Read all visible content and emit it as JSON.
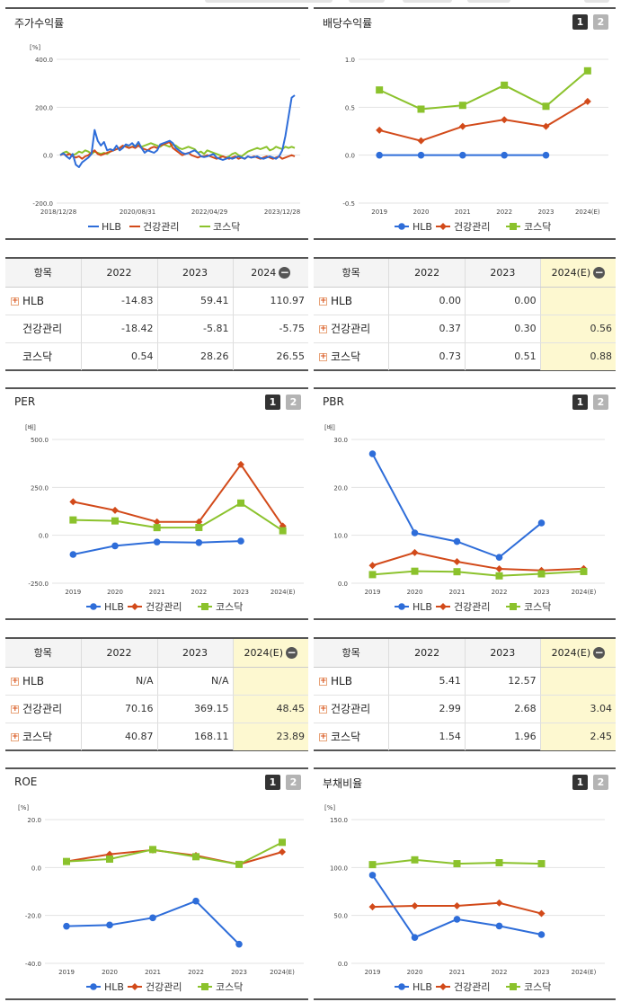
{
  "panels": [
    {
      "id": "p0",
      "title": "주가수익률",
      "buttons": null,
      "chart_data": {
        "type": "line",
        "unit": "[%]",
        "ylim": [
          -200,
          400
        ],
        "yticks": [
          "400.0",
          "200.0",
          "0.0",
          "-200.0"
        ],
        "xticks": [
          "2018/12/28",
          "2020/08/31",
          "2022/04/29",
          "2023/12/28"
        ],
        "series": [
          {
            "name": "HLB",
            "color": "#2e6dd9",
            "values": [
              0,
              8,
              -5,
              -15,
              5,
              -40,
              -50,
              -30,
              -20,
              -10,
              5,
              105,
              60,
              40,
              55,
              20,
              25,
              20,
              40,
              20,
              30,
              45,
              40,
              50,
              35,
              55,
              30,
              10,
              20,
              15,
              10,
              20,
              45,
              50,
              55,
              60,
              50,
              30,
              20,
              10,
              5,
              8,
              15,
              20,
              10,
              -5,
              -8,
              -5,
              0,
              5,
              -10,
              -15,
              -20,
              -15,
              -10,
              -15,
              -10,
              -5,
              -10,
              -15,
              -5,
              -10,
              -8,
              -5,
              -12,
              -15,
              -10,
              -5,
              -10,
              -15,
              -5,
              20,
              80,
              160,
              240,
              250
            ]
          },
          {
            "name": "건강관리",
            "color": "#d24a1a",
            "values": [
              0,
              5,
              0,
              5,
              -5,
              -10,
              -5,
              -15,
              -5,
              0,
              10,
              20,
              5,
              0,
              5,
              10,
              15,
              20,
              25,
              30,
              40,
              35,
              30,
              35,
              30,
              40,
              30,
              25,
              20,
              30,
              35,
              30,
              40,
              45,
              50,
              55,
              30,
              20,
              10,
              0,
              5,
              10,
              0,
              -5,
              -10,
              -5,
              -5,
              0,
              -5,
              -10,
              -15,
              -10,
              -5,
              -10,
              -15,
              -10,
              -5,
              -15,
              -10,
              -15,
              -5,
              -10,
              -5,
              -10,
              -15,
              -10,
              -5,
              -10,
              -15,
              -10,
              -5,
              -15,
              -10,
              -5,
              0,
              -5
            ]
          },
          {
            "name": "코스닥",
            "color": "#8bc22c",
            "values": [
              0,
              10,
              15,
              5,
              0,
              5,
              15,
              10,
              20,
              15,
              5,
              15,
              10,
              5,
              10,
              5,
              15,
              20,
              25,
              30,
              35,
              40,
              30,
              35,
              40,
              45,
              35,
              40,
              45,
              50,
              45,
              40,
              35,
              45,
              40,
              35,
              45,
              40,
              30,
              25,
              30,
              35,
              30,
              25,
              10,
              15,
              5,
              20,
              15,
              10,
              5,
              0,
              -5,
              -10,
              -5,
              5,
              10,
              0,
              -5,
              5,
              15,
              20,
              25,
              30,
              25,
              30,
              35,
              20,
              25,
              35,
              30,
              25,
              35,
              30,
              35,
              30
            ]
          }
        ]
      }
    },
    {
      "id": "p1",
      "title": "배당수익률",
      "buttons": [
        "1",
        "2"
      ],
      "chart_data": {
        "type": "line",
        "unit": "",
        "ylim": [
          -0.5,
          1.0
        ],
        "yticks": [
          "1.0",
          "0.5",
          "0.0",
          "-0.5"
        ],
        "categories": [
          "2019",
          "2020",
          "2021",
          "2022",
          "2023",
          "2024(E)"
        ],
        "series": [
          {
            "name": "HLB",
            "color": "#2e6dd9",
            "marker": "circle",
            "values": [
              0,
              0,
              0,
              0,
              0,
              null
            ]
          },
          {
            "name": "건강관리",
            "color": "#d24a1a",
            "marker": "diamond",
            "values": [
              0.26,
              0.15,
              0.3,
              0.37,
              0.3,
              0.56
            ]
          },
          {
            "name": "코스닥",
            "color": "#8bc22c",
            "marker": "square",
            "values": [
              0.68,
              0.48,
              0.52,
              0.73,
              0.51,
              0.88
            ]
          }
        ]
      }
    },
    {
      "id": "p2",
      "title": "PER",
      "buttons": [
        "1",
        "2"
      ],
      "chart_data": {
        "type": "line",
        "unit": "[배]",
        "ylim": [
          -250,
          500
        ],
        "yticks": [
          "500.0",
          "250.0",
          "0.0",
          "-250.0"
        ],
        "categories": [
          "2019",
          "2020",
          "2021",
          "2022",
          "2023",
          "2024(E)"
        ],
        "series": [
          {
            "name": "HLB",
            "color": "#2e6dd9",
            "marker": "circle",
            "values": [
              -100,
              -55,
              -35,
              -38,
              -30,
              null
            ]
          },
          {
            "name": "건강관리",
            "color": "#d24a1a",
            "marker": "diamond",
            "values": [
              175,
              130,
              70,
              70.16,
              369.15,
              48.45
            ]
          },
          {
            "name": "코스닥",
            "color": "#8bc22c",
            "marker": "square",
            "values": [
              80,
              75,
              40,
              40.87,
              168.11,
              23.89
            ]
          }
        ]
      }
    },
    {
      "id": "p3",
      "title": "PBR",
      "buttons": [
        "1",
        "2"
      ],
      "chart_data": {
        "type": "line",
        "unit": "[배]",
        "ylim": [
          0,
          30
        ],
        "yticks": [
          "30.0",
          "20.0",
          "10.0",
          "0.0"
        ],
        "categories": [
          "2019",
          "2020",
          "2021",
          "2022",
          "2023",
          "2024(E)"
        ],
        "series": [
          {
            "name": "HLB",
            "color": "#2e6dd9",
            "marker": "circle",
            "values": [
              27,
              10.5,
              8.7,
              5.41,
              12.57,
              null
            ]
          },
          {
            "name": "건강관리",
            "color": "#d24a1a",
            "marker": "diamond",
            "values": [
              3.7,
              6.4,
              4.5,
              2.99,
              2.68,
              3.04
            ]
          },
          {
            "name": "코스닥",
            "color": "#8bc22c",
            "marker": "square",
            "values": [
              1.8,
              2.5,
              2.4,
              1.54,
              1.96,
              2.45
            ]
          }
        ]
      }
    },
    {
      "id": "p4",
      "title": "ROE",
      "buttons": [
        "1",
        "2"
      ],
      "chart_data": {
        "type": "line",
        "unit": "[%]",
        "ylim": [
          -40,
          20
        ],
        "yticks": [
          "20.0",
          "0.0",
          "-20.0",
          "-40.0"
        ],
        "categories": [
          "2019",
          "2020",
          "2021",
          "2022",
          "2023",
          "2024(E)"
        ],
        "series": [
          {
            "name": "HLB",
            "color": "#2e6dd9",
            "marker": "circle",
            "values": [
              -24.5,
              -24,
              -21,
              -14,
              -32,
              null
            ]
          },
          {
            "name": "건강관리",
            "color": "#d24a1a",
            "marker": "diamond",
            "values": [
              2.5,
              5.5,
              7.3,
              5,
              1.3,
              6.5
            ]
          },
          {
            "name": "코스닥",
            "color": "#8bc22c",
            "marker": "square",
            "values": [
              2.5,
              3.5,
              7.5,
              4.5,
              1.3,
              10.5
            ]
          }
        ]
      }
    },
    {
      "id": "p5",
      "title": "부채비율",
      "buttons": [
        "1",
        "2"
      ],
      "chart_data": {
        "type": "line",
        "unit": "[%]",
        "ylim": [
          0,
          150
        ],
        "yticks": [
          "150.0",
          "100.0",
          "50.0",
          "0.0"
        ],
        "categories": [
          "2019",
          "2020",
          "2021",
          "2022",
          "2023",
          "2024(E)"
        ],
        "series": [
          {
            "name": "HLB",
            "color": "#2e6dd9",
            "marker": "circle",
            "values": [
              92,
              27,
              46,
              39,
              30,
              null
            ]
          },
          {
            "name": "건강관리",
            "color": "#d24a1a",
            "marker": "diamond",
            "values": [
              59,
              60,
              60,
              63,
              52,
              null
            ]
          },
          {
            "name": "코스닥",
            "color": "#8bc22c",
            "marker": "square",
            "values": [
              103,
              108,
              104,
              105,
              104,
              null
            ]
          }
        ]
      }
    }
  ],
  "tables": [
    {
      "id": "t0",
      "header": [
        "항목",
        "2022",
        "2023",
        "2024"
      ],
      "hl": false,
      "rows": [
        {
          "label": "HLB",
          "plus": true,
          "values": [
            "-14.83",
            "59.41",
            "110.97"
          ]
        },
        {
          "label": "건강관리",
          "plus": false,
          "values": [
            "-18.42",
            "-5.81",
            "-5.75"
          ]
        },
        {
          "label": "코스닥",
          "plus": false,
          "values": [
            "0.54",
            "28.26",
            "26.55"
          ]
        }
      ]
    },
    {
      "id": "t1",
      "header": [
        "항목",
        "2022",
        "2023",
        "2024(E)"
      ],
      "hl": true,
      "rows": [
        {
          "label": "HLB",
          "plus": true,
          "values": [
            "0.00",
            "0.00",
            ""
          ]
        },
        {
          "label": "건강관리",
          "plus": true,
          "values": [
            "0.37",
            "0.30",
            "0.56"
          ]
        },
        {
          "label": "코스닥",
          "plus": true,
          "values": [
            "0.73",
            "0.51",
            "0.88"
          ]
        }
      ]
    },
    {
      "id": "t2",
      "header": [
        "항목",
        "2022",
        "2023",
        "2024(E)"
      ],
      "hl": true,
      "rows": [
        {
          "label": "HLB",
          "plus": true,
          "values": [
            "N/A",
            "N/A",
            ""
          ]
        },
        {
          "label": "건강관리",
          "plus": true,
          "values": [
            "70.16",
            "369.15",
            "48.45"
          ]
        },
        {
          "label": "코스닥",
          "plus": true,
          "values": [
            "40.87",
            "168.11",
            "23.89"
          ]
        }
      ]
    },
    {
      "id": "t3",
      "header": [
        "항목",
        "2022",
        "2023",
        "2024(E)"
      ],
      "hl": true,
      "rows": [
        {
          "label": "HLB",
          "plus": true,
          "values": [
            "5.41",
            "12.57",
            ""
          ]
        },
        {
          "label": "건강관리",
          "plus": true,
          "values": [
            "2.99",
            "2.68",
            "3.04"
          ]
        },
        {
          "label": "코스닥",
          "plus": true,
          "values": [
            "1.54",
            "1.96",
            "2.45"
          ]
        }
      ]
    }
  ],
  "colors": {
    "hlb": "#2e6dd9",
    "health": "#d24a1a",
    "kosdaq": "#8bc22c",
    "highlight": "#fdf8d0"
  }
}
